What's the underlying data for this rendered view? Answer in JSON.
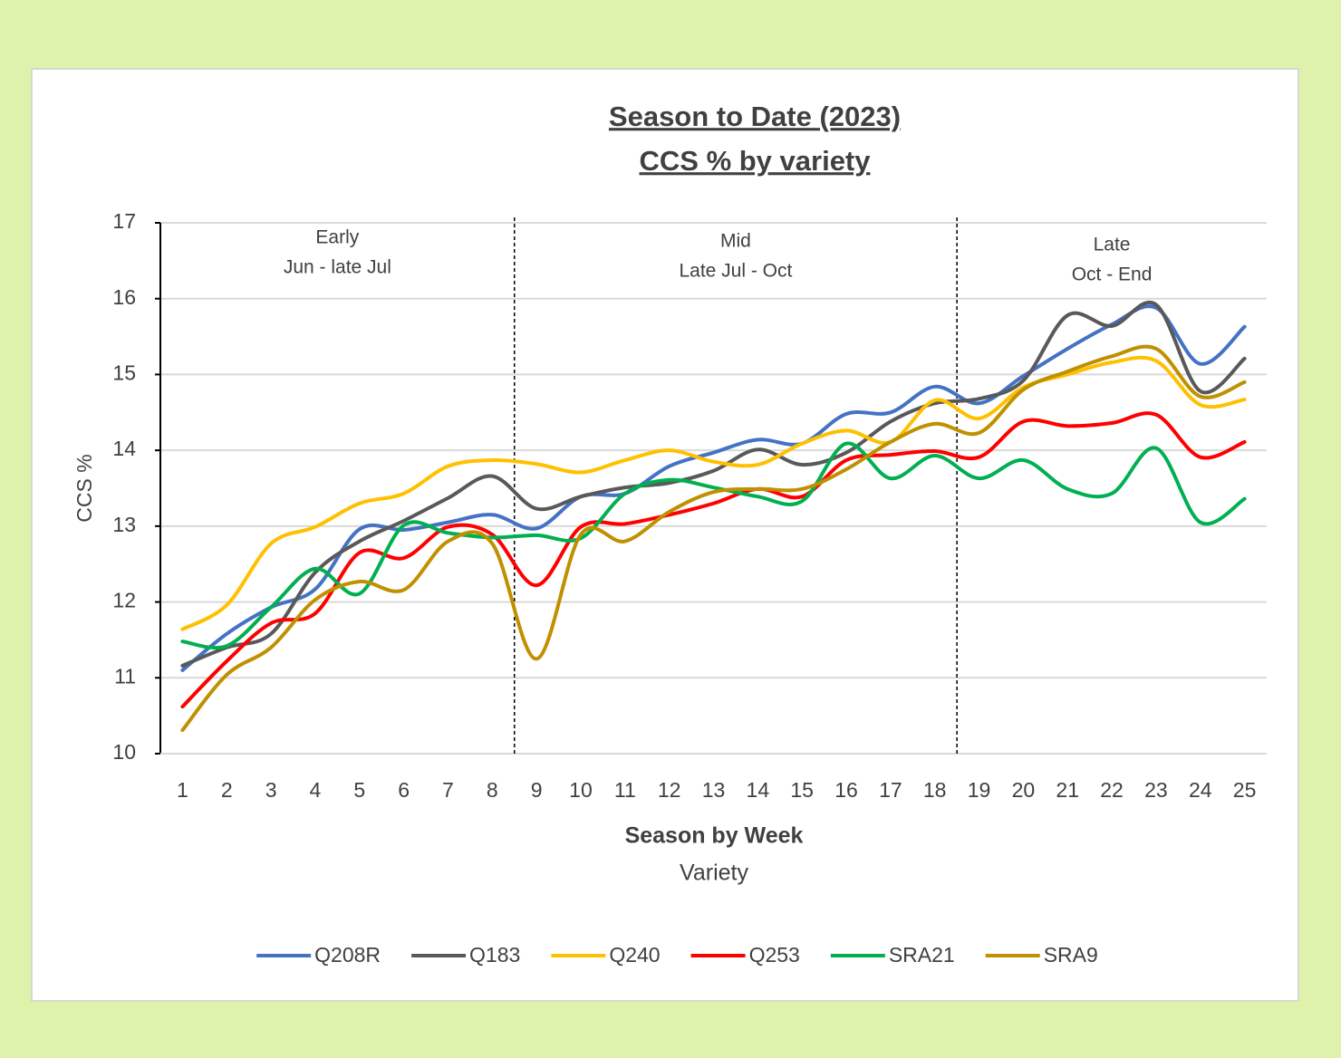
{
  "chart_data": {
    "type": "line",
    "title": "Season to Date (2023)",
    "subtitle": "CCS % by variety",
    "x_label": "Season by Week",
    "x_sublabel": "Variety",
    "y_label": "CCS %",
    "categories": [
      "1",
      "2",
      "3",
      "4",
      "5",
      "6",
      "7",
      "8",
      "9",
      "10",
      "11",
      "12",
      "13",
      "14",
      "15",
      "16",
      "17",
      "18",
      "19",
      "20",
      "21",
      "22",
      "23",
      "24",
      "25"
    ],
    "ylim": [
      10,
      17
    ],
    "yticks": [
      10,
      11,
      12,
      13,
      14,
      15,
      16,
      17
    ],
    "grid": true,
    "smooth": true,
    "legend": "bottom",
    "dividers": [
      8.5,
      18.5
    ],
    "annotations": [
      {
        "lines": [
          "Early",
          "Jun - late Jul"
        ]
      },
      {
        "lines": [
          "Mid",
          "Late Jul - Oct"
        ]
      },
      {
        "lines": [
          "Late",
          "Oct - End"
        ]
      }
    ],
    "series": [
      {
        "name": "Q208R",
        "color": "#4472c4",
        "values": [
          11.1,
          11.58,
          11.93,
          12.17,
          12.96,
          12.95,
          13.05,
          13.15,
          12.97,
          13.39,
          13.43,
          13.79,
          13.97,
          14.14,
          14.09,
          14.48,
          14.5,
          14.84,
          14.62,
          14.98,
          15.34,
          15.66,
          15.88,
          15.14,
          15.63
        ]
      },
      {
        "name": "Q183",
        "color": "#595959",
        "values": [
          11.16,
          11.4,
          11.58,
          12.39,
          12.8,
          13.07,
          13.37,
          13.66,
          13.23,
          13.39,
          13.51,
          13.57,
          13.73,
          14.01,
          13.81,
          13.97,
          14.38,
          14.62,
          14.68,
          14.92,
          15.78,
          15.64,
          15.92,
          14.78,
          15.21
        ]
      },
      {
        "name": "Q240",
        "color": "#ffc000",
        "values": [
          11.64,
          11.96,
          12.77,
          12.99,
          13.3,
          13.43,
          13.79,
          13.87,
          13.82,
          13.71,
          13.87,
          14.0,
          13.85,
          13.81,
          14.09,
          14.26,
          14.11,
          14.66,
          14.42,
          14.83,
          15.0,
          15.16,
          15.18,
          14.6,
          14.67
        ]
      },
      {
        "name": "Q253",
        "color": "#ff0000",
        "values": [
          10.62,
          11.22,
          11.72,
          11.85,
          12.65,
          12.58,
          12.99,
          12.89,
          12.22,
          12.99,
          13.03,
          13.15,
          13.3,
          13.49,
          13.39,
          13.87,
          13.94,
          13.99,
          13.91,
          14.38,
          14.32,
          14.36,
          14.47,
          13.91,
          14.11
        ]
      },
      {
        "name": "SRA21",
        "color": "#00b050",
        "values": [
          11.48,
          11.42,
          11.93,
          12.44,
          12.11,
          13.01,
          12.91,
          12.85,
          12.88,
          12.84,
          13.43,
          13.61,
          13.51,
          13.39,
          13.33,
          14.09,
          13.63,
          13.93,
          13.63,
          13.87,
          13.49,
          13.43,
          14.03,
          13.05,
          13.36
        ]
      },
      {
        "name": "SRA9",
        "color": "#bf9000",
        "values": [
          10.31,
          11.04,
          11.4,
          12.03,
          12.27,
          12.16,
          12.8,
          12.77,
          11.25,
          12.89,
          12.8,
          13.19,
          13.45,
          13.49,
          13.49,
          13.75,
          14.11,
          14.35,
          14.23,
          14.8,
          15.04,
          15.24,
          15.34,
          14.71,
          14.9
        ]
      }
    ]
  }
}
